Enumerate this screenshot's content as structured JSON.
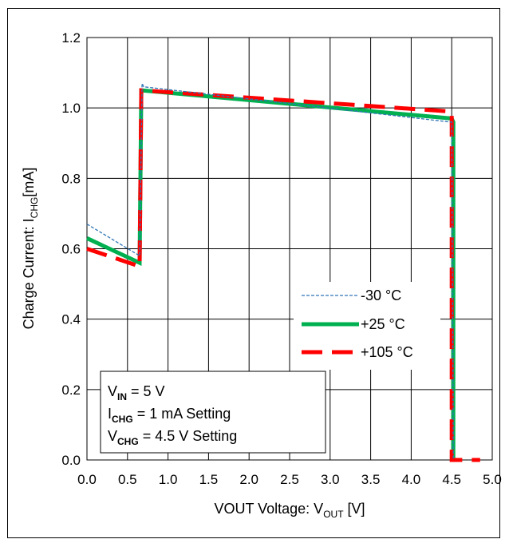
{
  "chart_data": {
    "type": "line",
    "xlabel": {
      "main": "VOUT Voltage: V",
      "sub": "OUT",
      "unit": " [V]"
    },
    "ylabel": {
      "main": "Charge Current: I",
      "sub": "CHG",
      "unit": "[mA]"
    },
    "xlim": [
      0,
      5
    ],
    "ylim": [
      0,
      1.2
    ],
    "xticks": [
      "0.0",
      "0.5",
      "1.0",
      "1.5",
      "2.0",
      "2.5",
      "3.0",
      "3.5",
      "4.0",
      "4.5",
      "5.0"
    ],
    "yticks": [
      "0.0",
      "0.2",
      "0.4",
      "0.6",
      "0.8",
      "1.0",
      "1.2"
    ],
    "grid": true,
    "legend_position": "right-middle",
    "series": [
      {
        "name": "-30 °C",
        "color": "#2e75b6",
        "style": "dashed-thin",
        "x": [
          0,
          0.65,
          0.65,
          0.68,
          0.7,
          4.48,
          4.5,
          4.52
        ],
        "y": [
          0.67,
          0.58,
          0.58,
          1.07,
          1.06,
          0.96,
          0.96,
          0.0
        ]
      },
      {
        "name": "+25 °C",
        "color": "#00b050",
        "style": "solid-thick",
        "x": [
          0,
          0.65,
          0.65,
          0.67,
          4.5,
          4.52,
          4.52
        ],
        "y": [
          0.63,
          0.56,
          0.56,
          1.05,
          0.97,
          0.96,
          0.0
        ]
      },
      {
        "name": "+105 °C",
        "color": "#ff0000",
        "style": "dashed-thick",
        "x": [
          0,
          0.65,
          0.65,
          0.67,
          4.48,
          4.5,
          4.5,
          4.85
        ],
        "y": [
          0.6,
          0.55,
          0.55,
          1.05,
          0.99,
          0.98,
          0.0,
          0.0
        ]
      }
    ],
    "annotation": [
      {
        "main": "V",
        "sub": "IN",
        "rest": " = 5 V"
      },
      {
        "main": "I",
        "sub": "CHG",
        "rest": " = 1 mA Setting"
      },
      {
        "main": "V",
        "sub": "CHG",
        "rest": " = 4.5 V Setting"
      }
    ]
  }
}
